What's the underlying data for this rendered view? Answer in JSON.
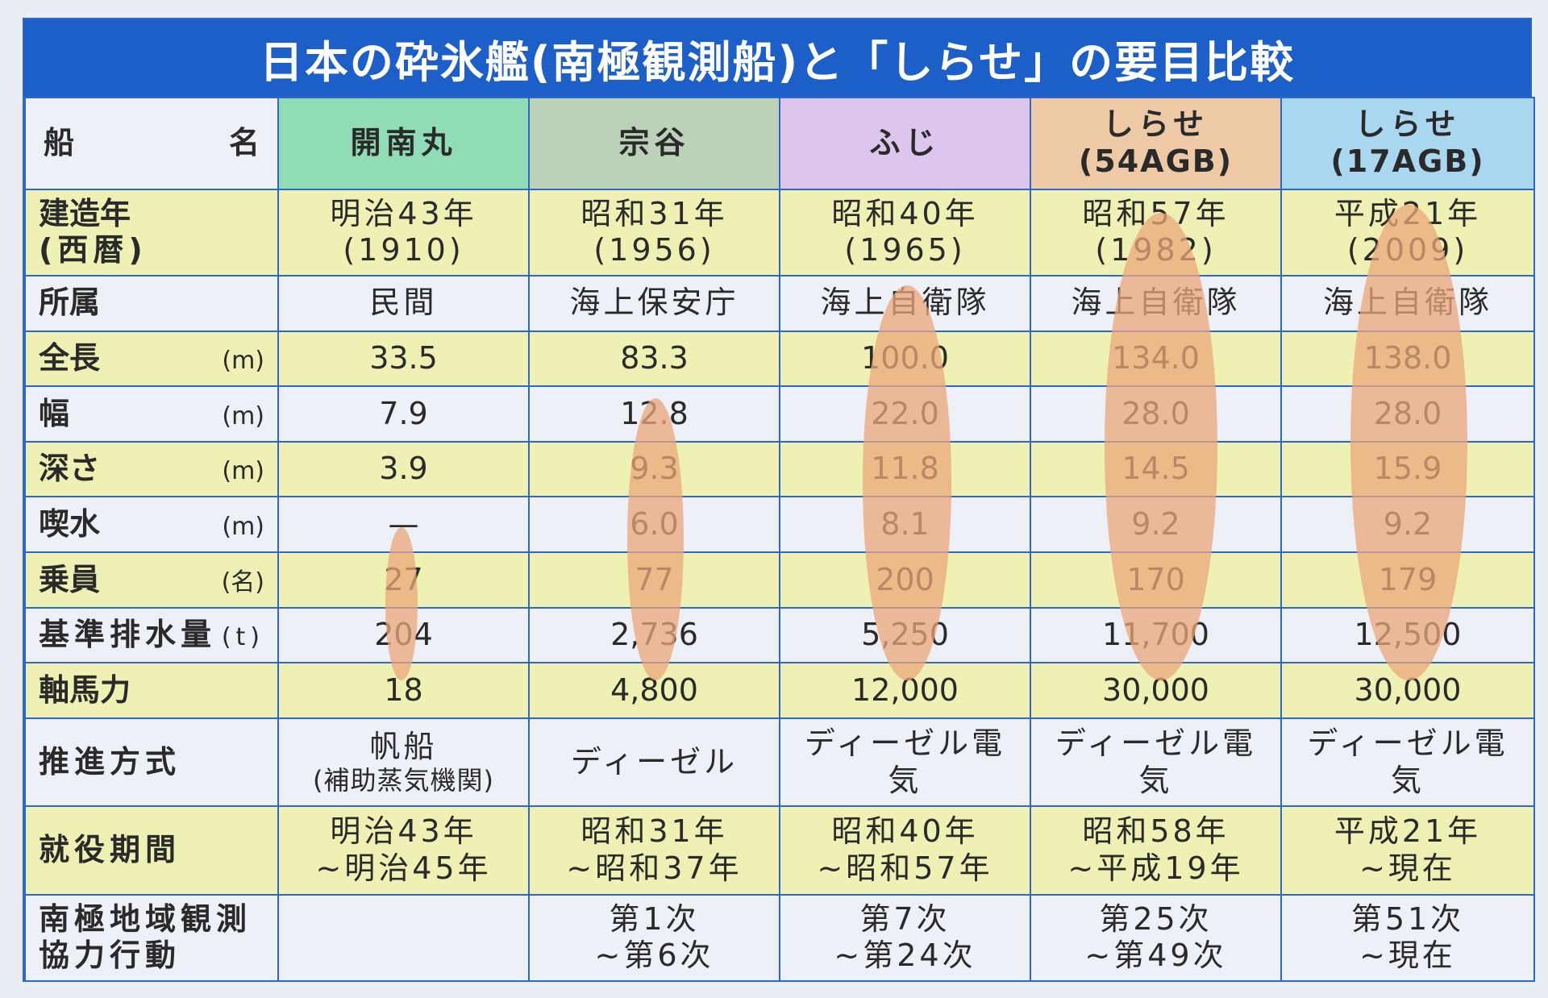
{
  "title": "日本の砕氷艦(南極観測船)と「しらせ」の要目比較",
  "header": {
    "label": "船名",
    "ships": [
      {
        "name": "開南丸",
        "sub": "",
        "color": "#8fdcb6"
      },
      {
        "name": "宗谷",
        "sub": "",
        "color": "#bcd2b8"
      },
      {
        "name": "ふじ",
        "sub": "",
        "color": "#dcc6ee"
      },
      {
        "name": "しらせ",
        "sub": "(54AGB)",
        "color": "#eec9a6"
      },
      {
        "name": "しらせ",
        "sub": "(17AGB)",
        "color": "#a9d7f0"
      }
    ]
  },
  "rows": [
    {
      "label": "建造年",
      "label2": "(西暦)",
      "unit": "",
      "values": [
        [
          "明治43年",
          "(1910)"
        ],
        [
          "昭和31年",
          "(1956)"
        ],
        [
          "昭和40年",
          "(1965)"
        ],
        [
          "昭和57年",
          "(1982)"
        ],
        [
          "平成21年",
          "(2009)"
        ]
      ]
    },
    {
      "label": "所属",
      "label2": "",
      "unit": "",
      "values": [
        [
          "民間"
        ],
        [
          "海上保安庁"
        ],
        [
          "海上自衛隊"
        ],
        [
          "海上自衛隊"
        ],
        [
          "海上自衛隊"
        ]
      ]
    },
    {
      "label": "全長",
      "label2": "",
      "unit": "(m)",
      "values": [
        [
          "33.5"
        ],
        [
          "83.3"
        ],
        [
          "100.0"
        ],
        [
          "134.0"
        ],
        [
          "138.0"
        ]
      ]
    },
    {
      "label": "幅",
      "label2": "",
      "unit": "(m)",
      "values": [
        [
          "7.9"
        ],
        [
          "12.8"
        ],
        [
          "22.0"
        ],
        [
          "28.0"
        ],
        [
          "28.0"
        ]
      ]
    },
    {
      "label": "深さ",
      "label2": "",
      "unit": "(m)",
      "values": [
        [
          "3.9"
        ],
        [
          "9.3"
        ],
        [
          "11.8"
        ],
        [
          "14.5"
        ],
        [
          "15.9"
        ]
      ]
    },
    {
      "label": "喫水",
      "label2": "",
      "unit": "(m)",
      "values": [
        [
          "—"
        ],
        [
          "6.0"
        ],
        [
          "8.1"
        ],
        [
          "9.2"
        ],
        [
          "9.2"
        ]
      ]
    },
    {
      "label": "乗員",
      "label2": "",
      "unit": "(名)",
      "values": [
        [
          "27"
        ],
        [
          "77"
        ],
        [
          "200"
        ],
        [
          "170"
        ],
        [
          "179"
        ]
      ]
    },
    {
      "label": "基準排水量",
      "label2": "",
      "unit": "(t)",
      "values": [
        [
          "204"
        ],
        [
          "2,736"
        ],
        [
          "5,250"
        ],
        [
          "11,700"
        ],
        [
          "12,500"
        ]
      ]
    },
    {
      "label": "軸馬力",
      "label2": "",
      "unit": "",
      "values": [
        [
          "18"
        ],
        [
          "4,800"
        ],
        [
          "12,000"
        ],
        [
          "30,000"
        ],
        [
          "30,000"
        ]
      ]
    },
    {
      "label": "推進方式",
      "label2": "",
      "unit": "",
      "values": [
        [
          "帆船",
          "(補助蒸気機関)"
        ],
        [
          "ディーゼル"
        ],
        [
          "ディーゼル電気"
        ],
        [
          "ディーゼル電気"
        ],
        [
          "ディーゼル電気"
        ]
      ]
    },
    {
      "label": "就役期間",
      "label2": "",
      "unit": "",
      "values": [
        [
          "明治43年",
          "~明治45年"
        ],
        [
          "昭和31年",
          "~昭和37年"
        ],
        [
          "昭和40年",
          "~昭和57年"
        ],
        [
          "昭和58年",
          "~平成19年"
        ],
        [
          "平成21年",
          "~現在"
        ]
      ]
    },
    {
      "label": "南極地域観測",
      "label2": "協力行動",
      "unit": "",
      "values": [
        [
          ""
        ],
        [
          "第1次",
          "~第6次"
        ],
        [
          "第7次",
          "~第24次"
        ],
        [
          "第25次",
          "~第49次"
        ],
        [
          "第51次",
          "~現在"
        ]
      ]
    }
  ],
  "accent_color": "#1d5fc9",
  "ship_silhouette_color": "#e9a779"
}
